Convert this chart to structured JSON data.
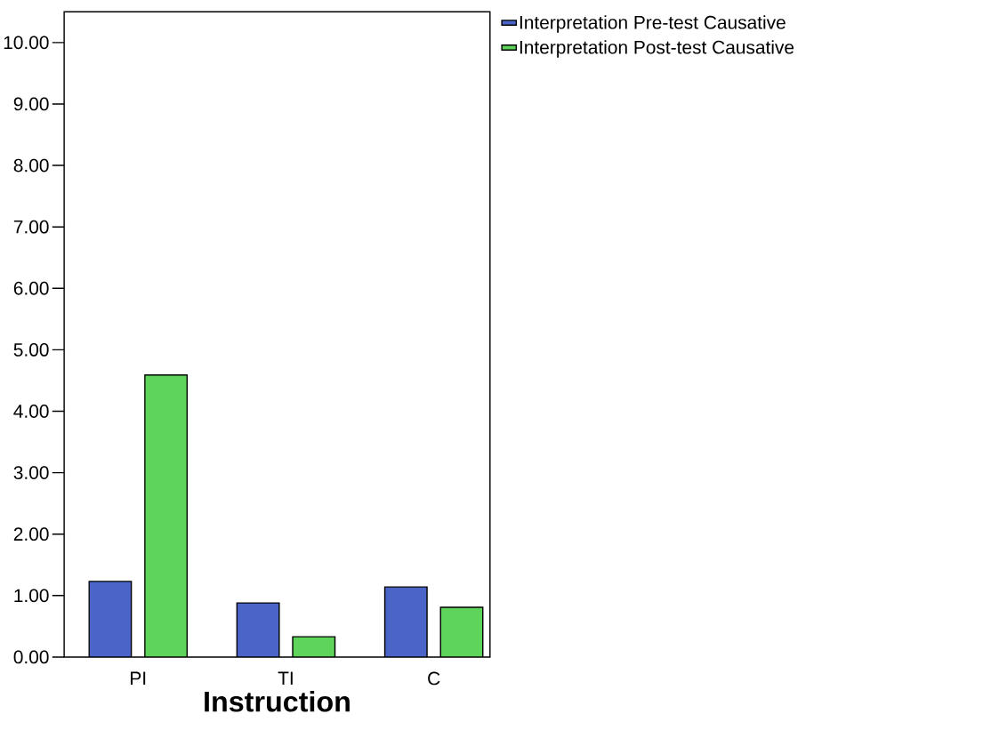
{
  "chart_data": {
    "type": "bar",
    "xlabel": "Instruction",
    "categories": [
      "PI",
      "TI",
      "C"
    ],
    "series": [
      {
        "name": "Interpretation Pre-test Causative",
        "color": "#4a64c8",
        "values": [
          1.23,
          0.88,
          1.14
        ]
      },
      {
        "name": "Interpretation Post-test Causative",
        "color": "#5fd45a",
        "values": [
          4.59,
          0.33,
          0.81
        ]
      }
    ],
    "ylim": [
      0,
      10.5
    ],
    "yticks": [
      {
        "value": 0,
        "label": "0.00"
      },
      {
        "value": 1,
        "label": "1.00"
      },
      {
        "value": 2,
        "label": "2.00"
      },
      {
        "value": 3,
        "label": "3.00"
      },
      {
        "value": 4,
        "label": "4.00"
      },
      {
        "value": 5,
        "label": "5.00"
      },
      {
        "value": 6,
        "label": "6.00"
      },
      {
        "value": 7,
        "label": "7.00"
      },
      {
        "value": 8,
        "label": "8.00"
      },
      {
        "value": 9,
        "label": "9.00"
      },
      {
        "value": 10,
        "label": "10.00"
      }
    ],
    "legend": "top right",
    "grid": false
  }
}
